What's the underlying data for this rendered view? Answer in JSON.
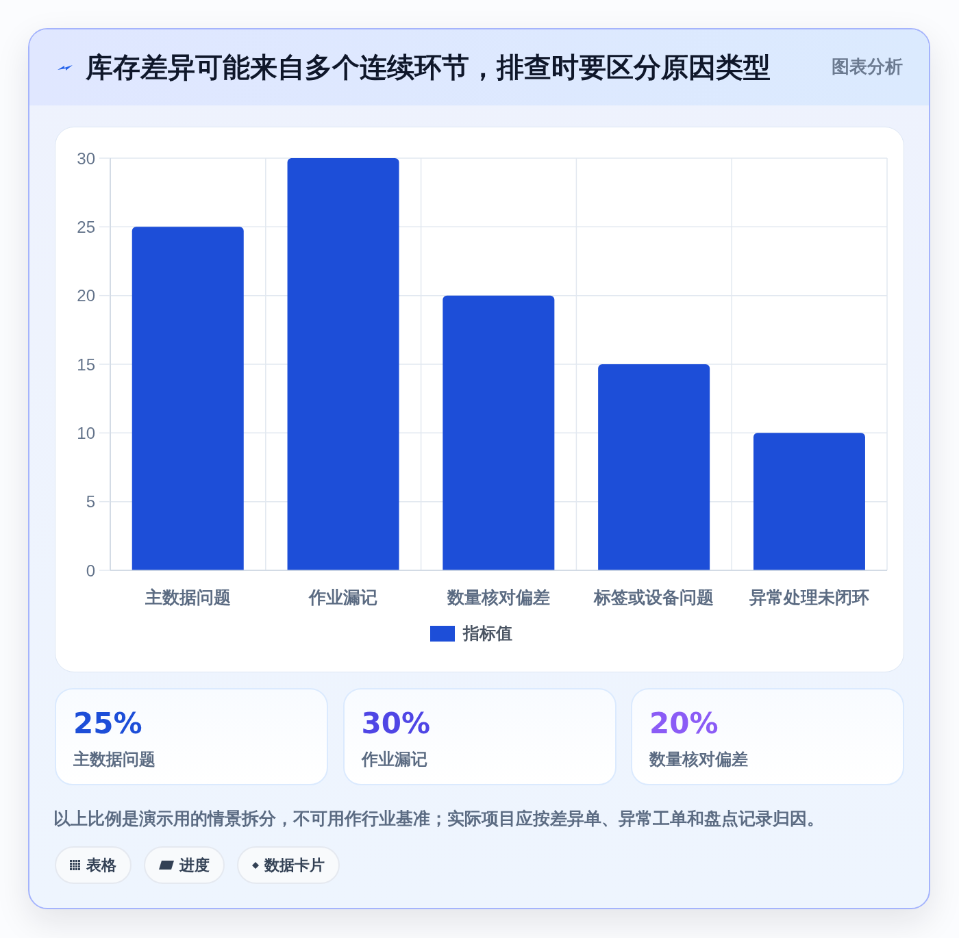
{
  "chart_data": [
    {
      "type": "bar",
      "title": "库存差异可能来自多个连续环节，排查时要区分原因类型",
      "subtitle": "图表分析",
      "categories": [
        "主数据问题",
        "作业漏记",
        "数量核对偏差",
        "标签或设备问题",
        "异常处理未闭环"
      ],
      "series": [
        {
          "name": "指标值",
          "color": "#1d4ed8",
          "values": [
            25,
            30,
            20,
            15,
            10
          ]
        }
      ],
      "ylim": [
        0,
        30
      ],
      "yticks": [
        0,
        5,
        10,
        15,
        20,
        25,
        30
      ],
      "grid": true,
      "legend": "bottom"
    },
    {
      "type": "other",
      "categories": [
        "主数据问题",
        "作业漏记",
        "数量核对偏差"
      ],
      "value_labels": [
        "25%",
        "30%",
        "20%"
      ],
      "annotations": [
        "以上比例是演示用的情景拆分，不可用作行业基准；实际项目应按差异单、异常工单和盘点记录归因。",
        "表格",
        "进度",
        "数据卡片"
      ]
    }
  ]
}
